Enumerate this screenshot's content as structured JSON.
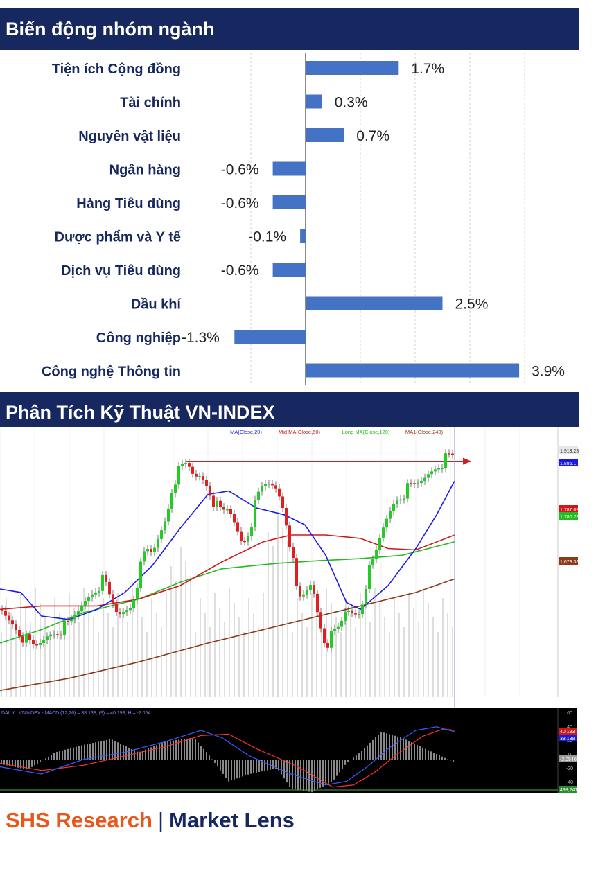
{
  "banners": {
    "sector": "Biến động nhóm ngành",
    "technical": "Phân Tích Kỹ Thuật VN-INDEX"
  },
  "chart_data": [
    {
      "type": "bar",
      "orientation": "horizontal",
      "title": "Biến động nhóm ngành",
      "categories": [
        "Tiện ích Cộng đồng",
        "Tài chính",
        "Nguyên vật liệu",
        "Ngân hàng",
        "Hàng Tiêu dùng",
        "Dược phẩm và Y tế",
        "Dịch vụ Tiêu dùng",
        "Dầu khí",
        "Công nghiệp",
        "Công nghệ Thông tin"
      ],
      "values": [
        1.7,
        0.3,
        0.7,
        -0.6,
        -0.6,
        -0.1,
        -0.6,
        2.5,
        -1.3,
        3.9
      ],
      "value_labels": [
        "1.7%",
        "0.3%",
        "0.7%",
        "-0.6%",
        "-0.6%",
        "-0.1%",
        "-0.6%",
        "2.5%",
        "-1.3%",
        "3.9%"
      ],
      "unit": "%",
      "bar_color": "#4472c4",
      "grid": true
    },
    {
      "type": "candlestick",
      "title": "Phân Tích Kỹ Thuật VN-INDEX",
      "legend": [
        "MA(Close,20)",
        "Mid MA(Close,60)",
        "Long MA(Close,120)",
        "MA1(Close,240)"
      ],
      "legend_colors": [
        "#1a1ae6",
        "#d01818",
        "#22bb22",
        "#8b3a1a"
      ],
      "price_axis_labels": [
        "1,913.23",
        "1,886.1",
        "1,787.09",
        "1,780.23",
        "1,673.33"
      ],
      "price_label_colors": [
        "#c8c8c8",
        "#1a1ae6",
        "#d01818",
        "#22bb22",
        "#8b3a1a"
      ],
      "resistance_level": 1913.23,
      "macd_panel": {
        "label": "DAILY | VNINDEX - MACD (12,26) = 38.138, (9) = 40.193, H = -2.054",
        "macd": 38.138,
        "signal": 40.193,
        "histogram": -2.054,
        "axis_ticks": [
          "60",
          "40",
          "20",
          "0",
          "-20",
          "-40"
        ],
        "value_labels": [
          "40.193",
          "38.138",
          "-2.05405"
        ],
        "volume_label": "498,241"
      }
    }
  ],
  "footer": {
    "brand": "SHS Research",
    "separator": "|",
    "product": "Market Lens"
  }
}
